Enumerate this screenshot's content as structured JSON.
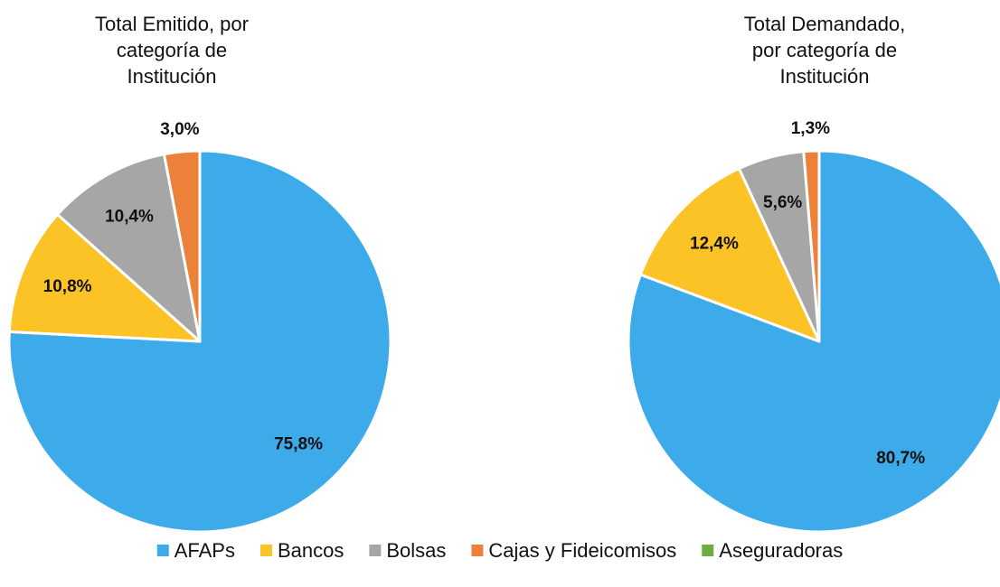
{
  "chart_data": [
    {
      "type": "pie",
      "title": "Total Emitido, por categoría de Institución",
      "categories": [
        "AFAPs",
        "Bancos",
        "Bolsas",
        "Cajas y Fideicomisos",
        "Aseguradoras"
      ],
      "values": [
        75.8,
        10.8,
        10.4,
        3.0,
        0
      ],
      "value_labels": [
        "75,8%",
        "10,8%",
        "10,4%",
        "3,0%",
        null
      ],
      "colors": [
        "#3daaea",
        "#fbc325",
        "#a6a6a6",
        "#ec8139",
        "#6fac3f"
      ]
    },
    {
      "type": "pie",
      "title": "Total Demandado, por categoría de Institución",
      "categories": [
        "AFAPs",
        "Bancos",
        "Bolsas",
        "Cajas y Fideicomisos",
        "Aseguradoras"
      ],
      "values": [
        80.7,
        12.4,
        5.6,
        1.3,
        0
      ],
      "value_labels": [
        "80,7%",
        "12,4%",
        "5,6%",
        "1,3%",
        null
      ],
      "colors": [
        "#3daaea",
        "#fbc325",
        "#a6a6a6",
        "#ec8139",
        "#6fac3f"
      ]
    }
  ]
}
